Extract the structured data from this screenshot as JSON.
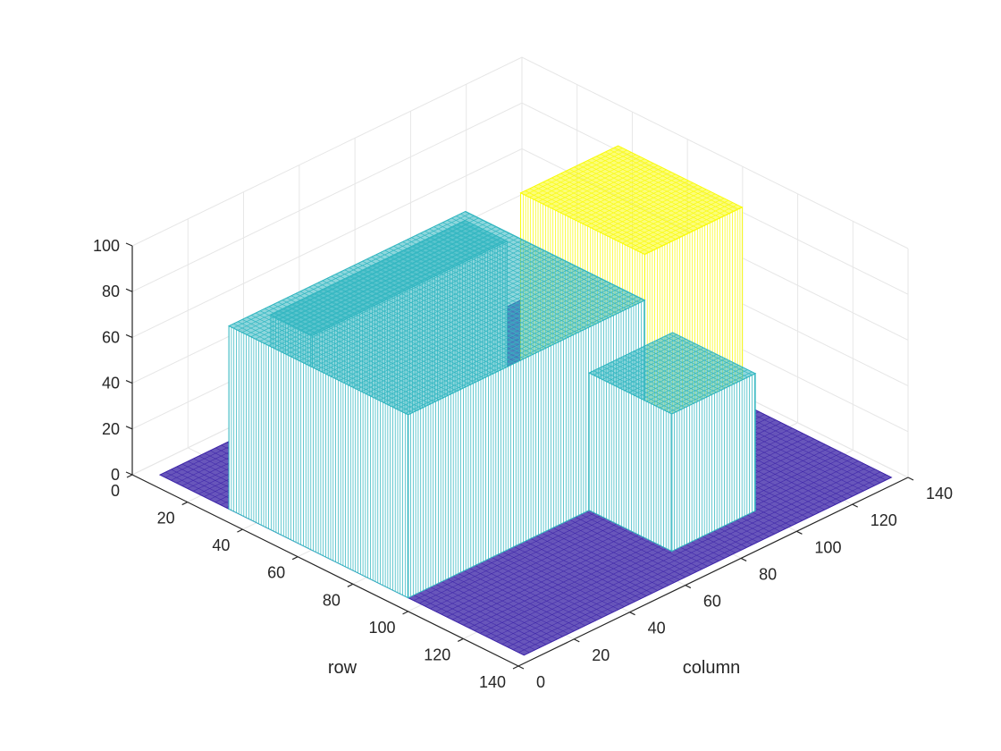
{
  "chart_data": {
    "type": "surface",
    "title": "",
    "xlabel": "column",
    "ylabel": "row",
    "zlabel": "",
    "xlim": [
      0,
      140
    ],
    "ylim": [
      0,
      140
    ],
    "zlim": [
      0,
      100
    ],
    "x_ticks": [
      0,
      20,
      40,
      60,
      80,
      100,
      120,
      140
    ],
    "y_ticks": [
      0,
      20,
      40,
      60,
      80,
      100,
      120,
      140
    ],
    "z_ticks": [
      0,
      20,
      40,
      60,
      80,
      100
    ],
    "x_tick_labels": [
      "0",
      "20",
      "40",
      "60",
      "80",
      "100",
      "120",
      "140"
    ],
    "y_tick_labels": [
      "0",
      "20",
      "40",
      "60",
      "80",
      "100",
      "120",
      "140"
    ],
    "z_tick_labels": [
      "0",
      "20",
      "40",
      "60",
      "80",
      "100"
    ],
    "grid": true,
    "view": "3d-isometric",
    "surface_extent": {
      "row": [
        5,
        137
      ],
      "column": [
        5,
        137
      ]
    },
    "regions": [
      {
        "rows": [
          5,
          137
        ],
        "columns": [
          5,
          137
        ],
        "z": 0,
        "color": "#3E26A8"
      },
      {
        "rows": [
          30,
          95
        ],
        "columns": [
          5,
          90
        ],
        "z": 80,
        "color": "#33B7C1"
      },
      {
        "rows": [
          95,
          125
        ],
        "columns": [
          70,
          100
        ],
        "z": 60,
        "color": "#33B7C1"
      },
      {
        "rows": [
          25,
          40
        ],
        "columns": [
          25,
          95
        ],
        "z": 70,
        "color": "#33B7C1"
      },
      {
        "rows": [
          50,
          95
        ],
        "columns": [
          90,
          125
        ],
        "z": 100,
        "color": "#F9FB0E"
      }
    ]
  }
}
